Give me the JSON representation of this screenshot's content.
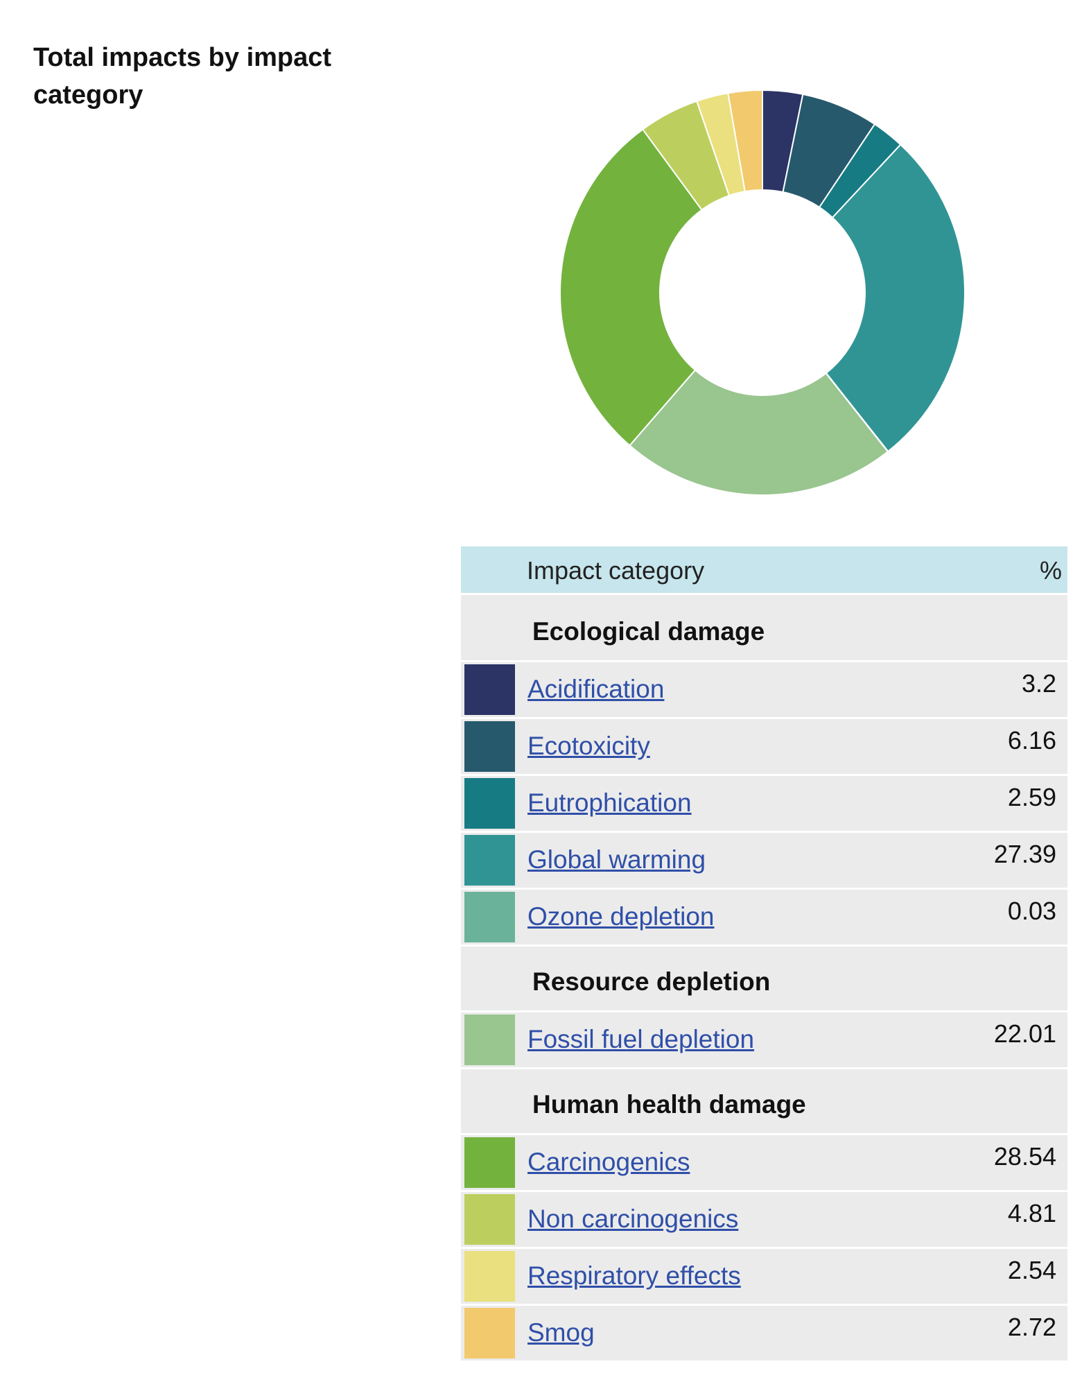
{
  "title": "Total impacts by impact category",
  "table": {
    "header_category": "Impact category",
    "header_percent": "%"
  },
  "chart_data": {
    "type": "pie",
    "variant": "donut",
    "title": "Total impacts by impact category",
    "groups": [
      {
        "name": "Ecological damage",
        "items": [
          {
            "label": "Acidification",
            "value": 3.2,
            "value_text": "3.2",
            "color": "#2b3464"
          },
          {
            "label": "Ecotoxicity",
            "value": 6.16,
            "value_text": "6.16",
            "color": "#27596c"
          },
          {
            "label": "Eutrophication",
            "value": 2.59,
            "value_text": "2.59",
            "color": "#177b84"
          },
          {
            "label": "Global warming",
            "value": 27.39,
            "value_text": "27.39",
            "color": "#319494"
          },
          {
            "label": "Ozone depletion",
            "value": 0.03,
            "value_text": "0.03",
            "color": "#6ab39a"
          }
        ]
      },
      {
        "name": "Resource depletion",
        "items": [
          {
            "label": "Fossil fuel depletion",
            "value": 22.01,
            "value_text": "22.01",
            "color": "#99c58f"
          }
        ]
      },
      {
        "name": "Human health damage",
        "items": [
          {
            "label": "Carcinogenics",
            "value": 28.54,
            "value_text": "28.54",
            "color": "#74b23e"
          },
          {
            "label": "Non carcinogenics",
            "value": 4.81,
            "value_text": "4.81",
            "color": "#bccf5e"
          },
          {
            "label": "Respiratory effects",
            "value": 2.54,
            "value_text": "2.54",
            "color": "#ebe07f"
          },
          {
            "label": "Smog",
            "value": 2.72,
            "value_text": "2.72",
            "color": "#f2c96c"
          }
        ]
      }
    ]
  }
}
